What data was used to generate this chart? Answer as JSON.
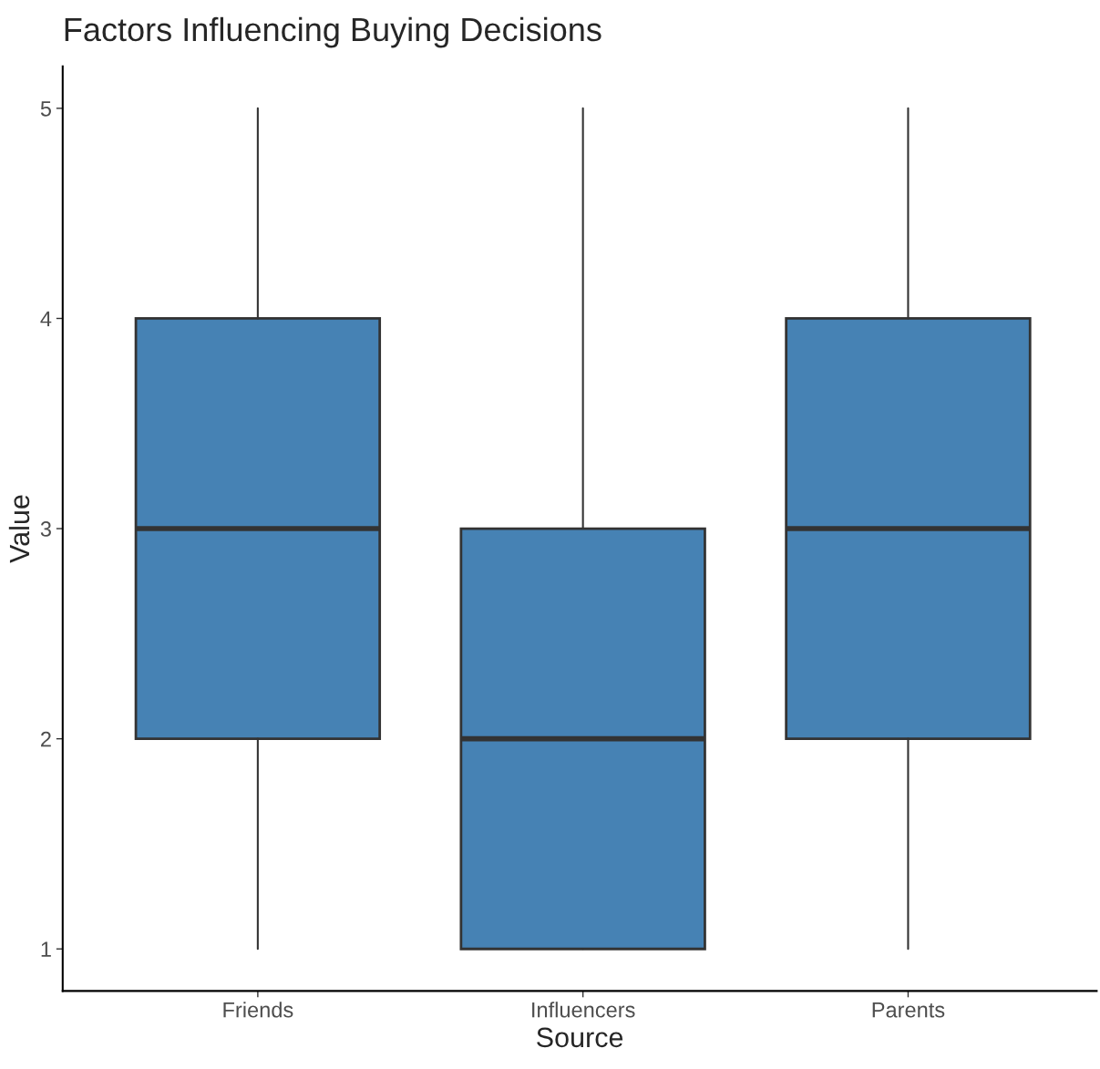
{
  "chart_data": {
    "type": "box",
    "title": "Factors Influencing Buying Decisions",
    "xlabel": "Source",
    "ylabel": "Value",
    "categories": [
      "Friends",
      "Influencers",
      "Parents"
    ],
    "boxes": [
      {
        "low": 1,
        "q1": 2,
        "median": 3,
        "q3": 4,
        "high": 5
      },
      {
        "low": 1,
        "q1": 1,
        "median": 2,
        "q3": 3,
        "high": 5
      },
      {
        "low": 1,
        "q1": 2,
        "median": 3,
        "q3": 4,
        "high": 5
      }
    ],
    "color": "#4682b4",
    "ylim": [
      0.8,
      5.2
    ],
    "yticks": [
      1,
      2,
      3,
      4,
      5
    ],
    "grid": false,
    "legend": false
  }
}
